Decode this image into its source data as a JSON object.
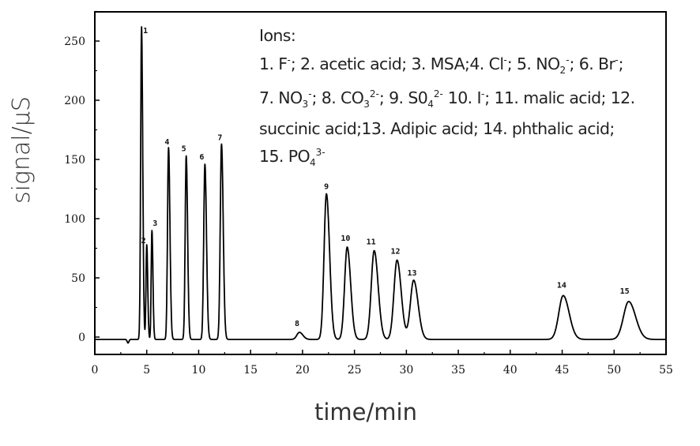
{
  "chart_data": {
    "type": "line",
    "title": "",
    "xlabel": "time/min",
    "ylabel": "signal/μS",
    "xlim": [
      0,
      55
    ],
    "ylim": [
      -15,
      275
    ],
    "x_ticks": [
      0,
      5,
      10,
      15,
      20,
      25,
      30,
      35,
      40,
      45,
      50,
      55
    ],
    "x_tick_labels": [
      "0",
      "5",
      "10",
      "15",
      "20",
      "25",
      "30",
      "35",
      "40",
      "45",
      "50",
      "55"
    ],
    "y_ticks": [
      0,
      50,
      100,
      150,
      200,
      250
    ],
    "y_tick_labels": [
      "0",
      "50",
      "100",
      "150",
      "200",
      "250"
    ],
    "grid": false,
    "legend_position": "top-right (text annotation)",
    "line_color": "#000000",
    "series": [
      {
        "name": "chromatogram",
        "peaks": [
          {
            "label": "1",
            "ion": "F⁻",
            "time_min": 4.5,
            "height_uS": 262
          },
          {
            "label": "2",
            "ion": "acetic acid",
            "time_min": 5.0,
            "height_uS": 78
          },
          {
            "label": "3",
            "ion": "MSA",
            "time_min": 5.5,
            "height_uS": 90
          },
          {
            "label": "4",
            "ion": "Cl⁻",
            "time_min": 7.1,
            "height_uS": 160
          },
          {
            "label": "5",
            "ion": "NO₂⁻",
            "time_min": 8.8,
            "height_uS": 153
          },
          {
            "label": "6",
            "ion": "Br⁻",
            "time_min": 10.6,
            "height_uS": 146
          },
          {
            "label": "7",
            "ion": "NO₃⁻",
            "time_min": 12.2,
            "height_uS": 163
          },
          {
            "label": "8",
            "ion": "CO₃²⁻",
            "time_min": 19.7,
            "height_uS": 4
          },
          {
            "label": "9",
            "ion": "SO₄²⁻",
            "time_min": 22.3,
            "height_uS": 121
          },
          {
            "label": "10",
            "ion": "I⁻",
            "time_min": 24.3,
            "height_uS": 76
          },
          {
            "label": "11",
            "ion": "malic acid",
            "time_min": 26.9,
            "height_uS": 73
          },
          {
            "label": "12",
            "ion": "succinic acid",
            "time_min": 29.1,
            "height_uS": 65
          },
          {
            "label": "13",
            "ion": "Adipic acid",
            "time_min": 30.7,
            "height_uS": 48
          },
          {
            "label": "14",
            "ion": "phthalic acid",
            "time_min": 45.1,
            "height_uS": 35
          },
          {
            "label": "15",
            "ion": "PO₄³⁻",
            "time_min": 51.4,
            "height_uS": 30
          }
        ],
        "baseline_uS": -2,
        "dip": {
          "time_min": 3.2,
          "value_uS": -5
        }
      }
    ],
    "annotations": {
      "legend_title": "Ions:",
      "legend_text": "1. F⁻; 2. acetic acid; 3. MSA;4. Cl⁻; 5. NO₂⁻; 6. Br⁻; 7. NO₃⁻; 8. CO₃²⁻; 9. S0₄²⁻ 10. I⁻; 11. malic acid; 12. succinic acid;13. Adipic acid; 14. phthalic acid; 15. PO₄³⁻"
    }
  },
  "legend": {
    "title": "Ions:",
    "l1": [
      {
        "t": "1. F"
      },
      {
        "sup": "-"
      },
      {
        "t": "; 2. acetic acid; 3. MSA;4. Cl"
      },
      {
        "sup": "-"
      },
      {
        "t": ";  5. NO"
      },
      {
        "sub": "2"
      },
      {
        "sup": "-"
      },
      {
        "t": "; 6. Br"
      },
      {
        "sup": "-"
      },
      {
        "t": ";"
      }
    ],
    "l2": [
      {
        "t": "7. NO"
      },
      {
        "sub": "3"
      },
      {
        "sup": "-"
      },
      {
        "t": "; 8. CO"
      },
      {
        "sub": "3"
      },
      {
        "sup": "2-"
      },
      {
        "t": "; 9. S0"
      },
      {
        "sub": "4"
      },
      {
        "sup": "2-"
      },
      {
        "t": "  10. I"
      },
      {
        "sup": "-"
      },
      {
        "t": "; 11. malic acid; 12."
      }
    ],
    "l3": [
      {
        "t": "succinic acid;13. Adipic acid; 14. phthalic acid;"
      }
    ],
    "l4": [
      {
        "t": "15. PO"
      },
      {
        "sub": "4"
      },
      {
        "sup": "3-"
      }
    ]
  },
  "axes": {
    "xlabel": "time/min",
    "ylabel": "signal/μS"
  }
}
